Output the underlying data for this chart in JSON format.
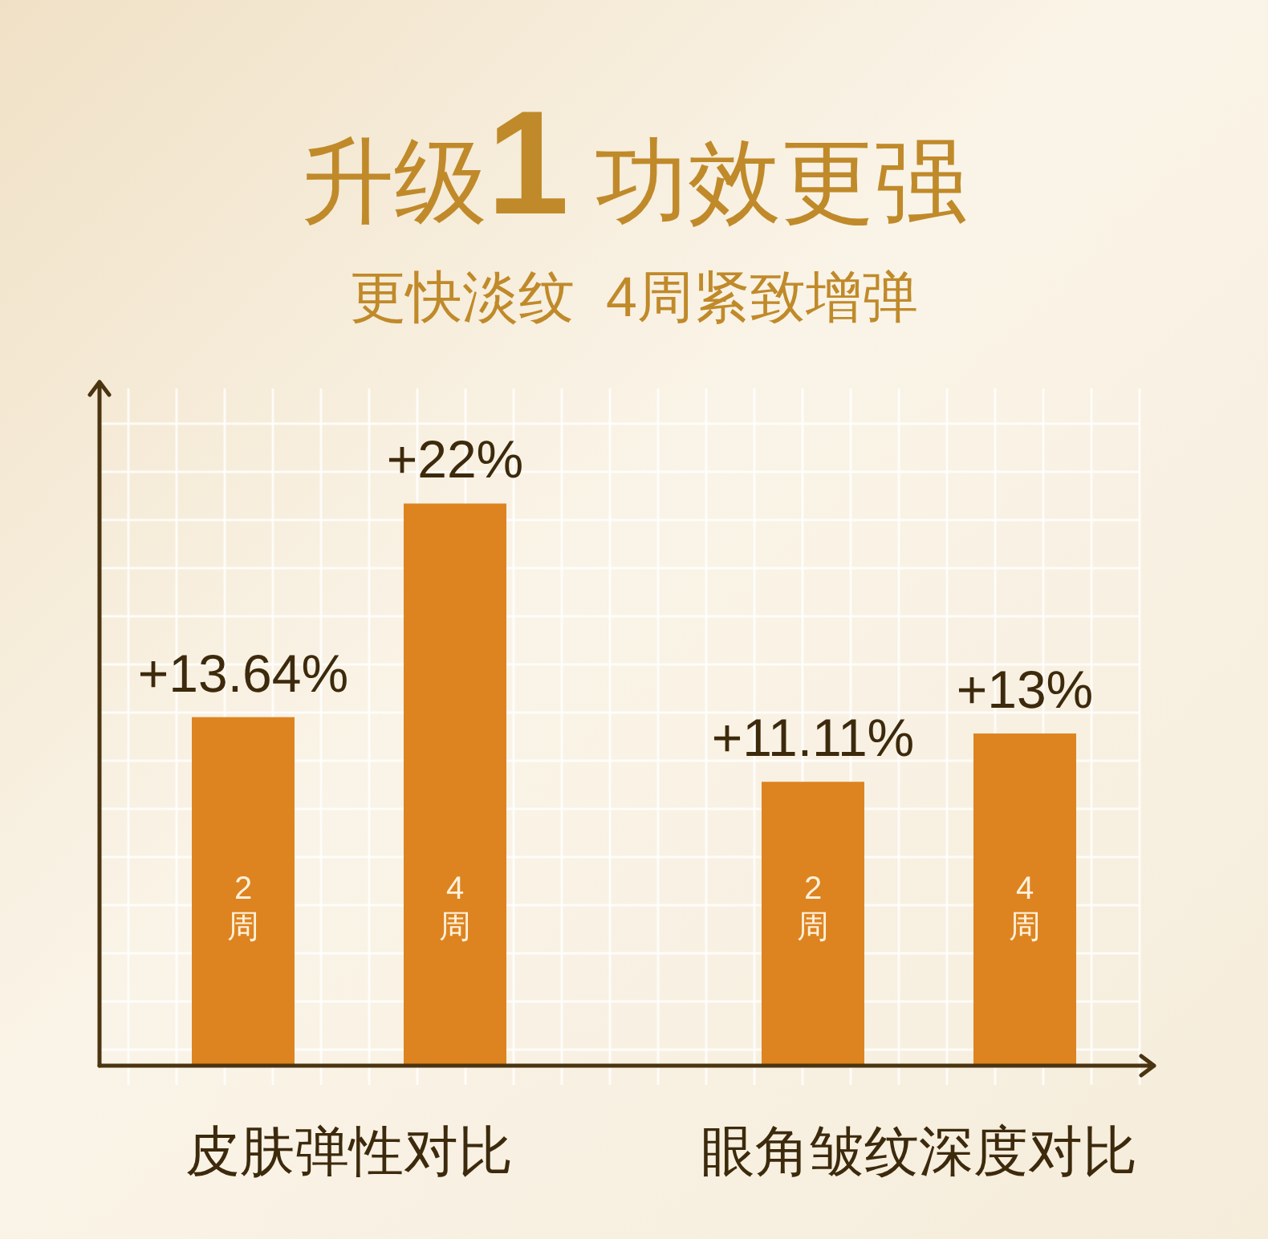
{
  "chart_data": {
    "type": "bar",
    "title": "升级1 功效更强",
    "subtitle": "更快淡纹  4周紧致增弹",
    "categories": [
      "皮肤弹性对比",
      "眼角皱纹深度对比"
    ],
    "series": [
      {
        "name": "2周",
        "color": "#dd8420",
        "values": [
          13.64,
          11.11
        ],
        "value_labels": [
          "+13.64%",
          "+11.11%"
        ]
      },
      {
        "name": "4周",
        "color": "#dd8420",
        "values": [
          22,
          13
        ],
        "value_labels": [
          "+22%",
          "+13%"
        ]
      }
    ],
    "grid": true
  }
}
